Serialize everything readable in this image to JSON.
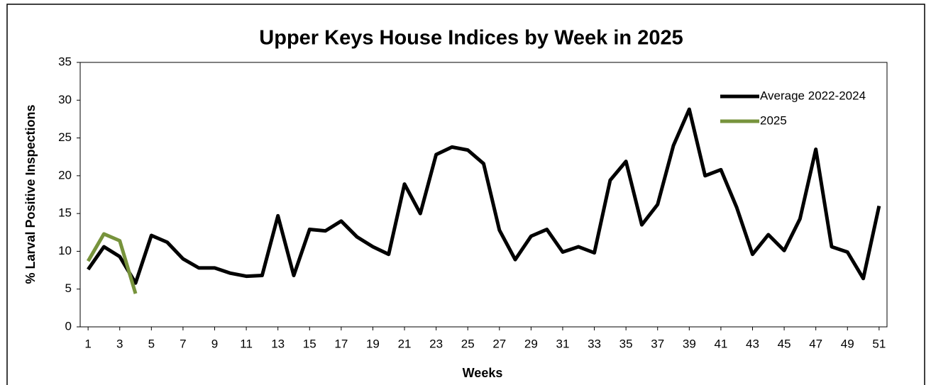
{
  "chart_data": {
    "type": "line",
    "title": "Upper Keys House Indices by Week in 2025",
    "x_label": "Weeks",
    "y_label": "% Larval Positive Inspections",
    "x": [
      1,
      2,
      3,
      4,
      5,
      6,
      7,
      8,
      9,
      10,
      11,
      12,
      13,
      14,
      15,
      16,
      17,
      18,
      19,
      20,
      21,
      22,
      23,
      24,
      25,
      26,
      27,
      28,
      29,
      30,
      31,
      32,
      33,
      34,
      35,
      36,
      37,
      38,
      39,
      40,
      41,
      42,
      43,
      44,
      45,
      46,
      47,
      48,
      49,
      50,
      51
    ],
    "series": [
      {
        "name": "Average  2022-2024",
        "color": "#000000",
        "values": [
          7.6,
          10.6,
          9.3,
          5.8,
          12.1,
          11.2,
          9.0,
          7.8,
          7.8,
          7.1,
          6.7,
          6.8,
          14.7,
          6.8,
          12.9,
          12.7,
          14.0,
          11.9,
          10.6,
          9.6,
          18.9,
          15.0,
          22.8,
          23.8,
          23.4,
          21.6,
          12.8,
          8.9,
          12.0,
          12.9,
          9.9,
          10.6,
          9.8,
          19.4,
          21.9,
          13.5,
          16.2,
          24.0,
          28.8,
          20.0,
          20.8,
          15.8,
          9.6,
          12.2,
          10.1,
          14.3,
          23.5,
          10.6,
          9.9,
          6.4,
          16.0
        ]
      },
      {
        "name": "2025",
        "color": "#77933c",
        "values": [
          8.7,
          12.3,
          11.4,
          4.4,
          null,
          null,
          null,
          null,
          null,
          null,
          null,
          null,
          null,
          null,
          null,
          null,
          null,
          null,
          null,
          null,
          null,
          null,
          null,
          null,
          null,
          null,
          null,
          null,
          null,
          null,
          null,
          null,
          null,
          null,
          null,
          null,
          null,
          null,
          null,
          null,
          null,
          null,
          null,
          null,
          null,
          null,
          null,
          null,
          null,
          null,
          null
        ]
      }
    ],
    "xlim": [
      0.5,
      51.5
    ],
    "xticks": [
      1,
      3,
      5,
      7,
      9,
      11,
      13,
      15,
      17,
      19,
      21,
      23,
      25,
      27,
      29,
      31,
      33,
      35,
      37,
      39,
      41,
      43,
      45,
      47,
      49,
      51
    ],
    "ylim": [
      0,
      35
    ],
    "yticks": [
      0,
      5,
      10,
      15,
      20,
      25,
      30,
      35
    ],
    "grid": false,
    "legend": "upper right"
  }
}
